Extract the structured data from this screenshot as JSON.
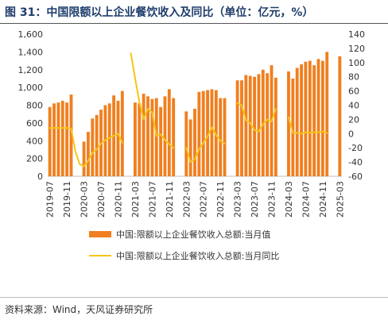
{
  "title": "图 31：中国限额以上企业餐饮收入及同比（单位：亿元，%）",
  "source": "资料来源：Wind，天风证券研究所",
  "colors": {
    "bar": "#f07f1f",
    "line": "#f5c518",
    "axis": "#bfbfbf",
    "title": "#1f3d6b"
  },
  "chart_data": {
    "type": "bar",
    "title": "",
    "legend_position": "bottom",
    "grid": false,
    "x_tick_labels": [
      "2019-07",
      "2019-11",
      "2020-03",
      "2020-07",
      "2020-11",
      "2021-03",
      "2021-07",
      "2021-11",
      "2022-03",
      "2022-07",
      "2022-11",
      "2023-03",
      "2023-07",
      "2023-11",
      "2024-03",
      "2024-07",
      "2024-11",
      "2025-03"
    ],
    "y_left": {
      "min": 0,
      "max": 1600,
      "ticks": [
        "0",
        "200",
        "400",
        "600",
        "800",
        "1,000",
        "1,200",
        "1,400",
        "1,600"
      ]
    },
    "y_right": {
      "min": -60,
      "max": 140,
      "ticks": [
        "-60",
        "-40",
        "-20",
        "0",
        "20",
        "40",
        "60",
        "80",
        "100",
        "120",
        "140"
      ]
    },
    "categories": [
      "2019-07",
      "2019-08",
      "2019-09",
      "2019-10",
      "2019-11",
      "2019-12",
      "2020-01",
      "2020-02",
      "2020-03",
      "2020-04",
      "2020-05",
      "2020-06",
      "2020-07",
      "2020-08",
      "2020-09",
      "2020-10",
      "2020-11",
      "2020-12",
      "2021-01",
      "2021-02",
      "2021-03",
      "2021-04",
      "2021-05",
      "2021-06",
      "2021-07",
      "2021-08",
      "2021-09",
      "2021-10",
      "2021-11",
      "2021-12",
      "2022-01",
      "2022-02",
      "2022-03",
      "2022-04",
      "2022-05",
      "2022-06",
      "2022-07",
      "2022-08",
      "2022-09",
      "2022-10",
      "2022-11",
      "2022-12",
      "2023-01",
      "2023-02",
      "2023-03",
      "2023-04",
      "2023-05",
      "2023-06",
      "2023-07",
      "2023-08",
      "2023-09",
      "2023-10",
      "2023-11",
      "2023-12",
      "2024-01",
      "2024-02",
      "2024-03",
      "2024-04",
      "2024-05",
      "2024-06",
      "2024-07",
      "2024-08",
      "2024-09",
      "2024-10",
      "2024-11",
      "2024-12",
      "2025-01",
      "2025-02",
      "2025-03"
    ],
    "series": [
      {
        "name": "中国:限额以上企业餐饮收入总额:当月值",
        "type": "bar",
        "axis": "left",
        "values": [
          780,
          820,
          830,
          850,
          830,
          920,
          null,
          null,
          390,
          500,
          650,
          690,
          750,
          800,
          820,
          910,
          850,
          960,
          null,
          null,
          830,
          820,
          930,
          900,
          870,
          880,
          780,
          900,
          980,
          880,
          null,
          null,
          730,
          640,
          760,
          950,
          960,
          970,
          980,
          970,
          880,
          880,
          null,
          null,
          1080,
          1080,
          1140,
          1130,
          1120,
          1150,
          1200,
          1160,
          1250,
          1110,
          null,
          null,
          1180,
          1100,
          1220,
          1260,
          1290,
          1300,
          1250,
          1320,
          1300,
          1400,
          null,
          null,
          1350
        ]
      },
      {
        "name": "中国:限额以上企业餐饮收入总额:当月同比",
        "type": "line",
        "axis": "right",
        "values": [
          8,
          8,
          8,
          8,
          8,
          7,
          -25,
          -43,
          -46,
          -38,
          -27,
          -22,
          -14,
          -9,
          -6,
          -3,
          0,
          -13,
          null,
          113,
          78,
          45,
          20,
          35,
          30,
          -3,
          -1,
          -9,
          -15,
          -20,
          null,
          null,
          -20,
          -40,
          -36,
          -22,
          -13,
          -4,
          9,
          -2,
          -10,
          -14,
          null,
          null,
          43,
          40,
          19,
          15,
          5,
          3,
          13,
          20,
          17,
          35,
          null,
          null,
          23,
          1,
          1,
          0,
          2,
          1,
          2,
          2,
          3,
          1,
          null,
          null,
          3
        ]
      }
    ]
  }
}
